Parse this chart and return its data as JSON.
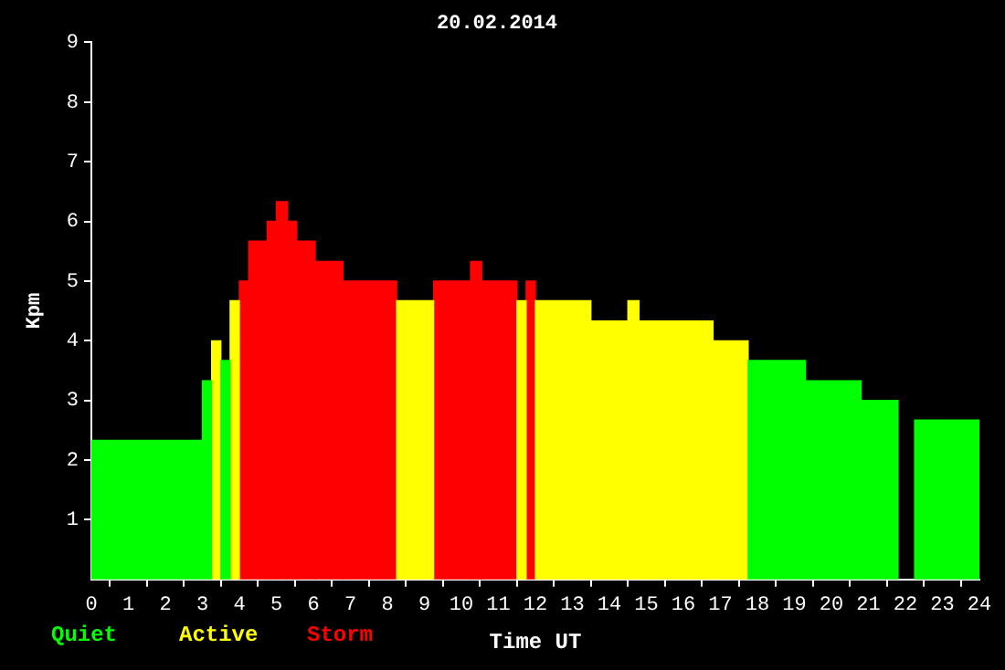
{
  "chart_data": {
    "type": "histogram",
    "title": "20.02.2014",
    "xlabel": "Time UT",
    "ylabel": "Kpm",
    "bins": [
      0,
      3,
      3.25,
      3.5,
      3.75,
      4,
      4.25,
      4.75,
      5,
      5.3,
      5.55,
      6.05,
      6.8,
      8.25,
      9.25,
      10.25,
      10.55,
      11.5,
      11.75,
      12,
      13.5,
      14.5,
      14.8,
      16.8,
      17.75,
      19.3,
      20.8,
      21.8,
      22.25,
      24
    ],
    "series": [
      {
        "name": "Quiet",
        "color": "#00ff00",
        "values": [
          2.33,
          3.33,
          null,
          3.67,
          null,
          null,
          null,
          null,
          null,
          null,
          null,
          null,
          null,
          null,
          null,
          null,
          null,
          null,
          null,
          null,
          null,
          null,
          null,
          null,
          3.67,
          3.33,
          3,
          null,
          2.67
        ]
      },
      {
        "name": "Active",
        "color": "#ffff00",
        "values": [
          null,
          null,
          4,
          null,
          4.67,
          null,
          null,
          null,
          null,
          null,
          null,
          null,
          null,
          4.67,
          null,
          null,
          null,
          4.67,
          null,
          4.67,
          4.33,
          4.67,
          4.33,
          4,
          null,
          null,
          null,
          null,
          null
        ]
      },
      {
        "name": "Storm",
        "color": "#ff0000",
        "values": [
          null,
          null,
          null,
          null,
          null,
          5,
          5.67,
          6,
          6.33,
          6,
          5.67,
          5.33,
          5,
          null,
          5,
          5.33,
          5,
          null,
          5,
          null,
          null,
          null,
          null,
          null,
          null,
          null,
          null,
          null,
          null
        ]
      }
    ],
    "xlim": [
      0,
      24
    ],
    "xticks": [
      0,
      1,
      2,
      3,
      4,
      5,
      6,
      7,
      8,
      9,
      10,
      11,
      12,
      13,
      14,
      15,
      16,
      17,
      18,
      19,
      20,
      21,
      22,
      23,
      24
    ],
    "ylim": [
      0,
      9
    ],
    "yticks": [
      1,
      2,
      3,
      4,
      5,
      6,
      7,
      8,
      9
    ],
    "grid": false,
    "legend": "bottom left"
  }
}
